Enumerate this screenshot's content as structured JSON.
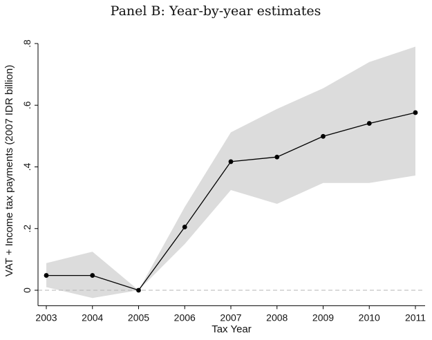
{
  "chart_data": {
    "type": "line",
    "title": "Panel B: Year-by-year estimates",
    "xlabel": "Tax Year",
    "ylabel": "VAT + Income tax payments (2007 IDR billion)",
    "x": [
      2003,
      2004,
      2005,
      2006,
      2007,
      2008,
      2009,
      2010,
      2011
    ],
    "x_tick_labels": [
      "2003",
      "2004",
      "2005",
      "2006",
      "2007",
      "2008",
      "2009",
      "2010",
      "2011"
    ],
    "y_ticks": [
      0,
      0.2,
      0.4,
      0.6,
      0.8
    ],
    "y_tick_labels": [
      "0",
      ".2",
      ".4",
      ".6",
      ".8"
    ],
    "ylim": [
      -0.05,
      0.8
    ],
    "series": [
      {
        "values": [
          0.048,
          0.048,
          0.0,
          0.205,
          0.417,
          0.432,
          0.499,
          0.541,
          0.576
        ],
        "ci_lower": [
          0.01,
          -0.025,
          0.0,
          0.15,
          0.325,
          0.28,
          0.348,
          0.348,
          0.372
        ],
        "ci_upper": [
          0.088,
          0.125,
          0.0,
          0.27,
          0.512,
          0.588,
          0.655,
          0.74,
          0.79
        ]
      }
    ],
    "reference_line": {
      "y": 0,
      "style": "dashed"
    },
    "grid": false,
    "colors": {
      "line": "#000000",
      "band": "#dcdcdc",
      "reference": "#b4b4b4",
      "axis": "#000000"
    }
  }
}
